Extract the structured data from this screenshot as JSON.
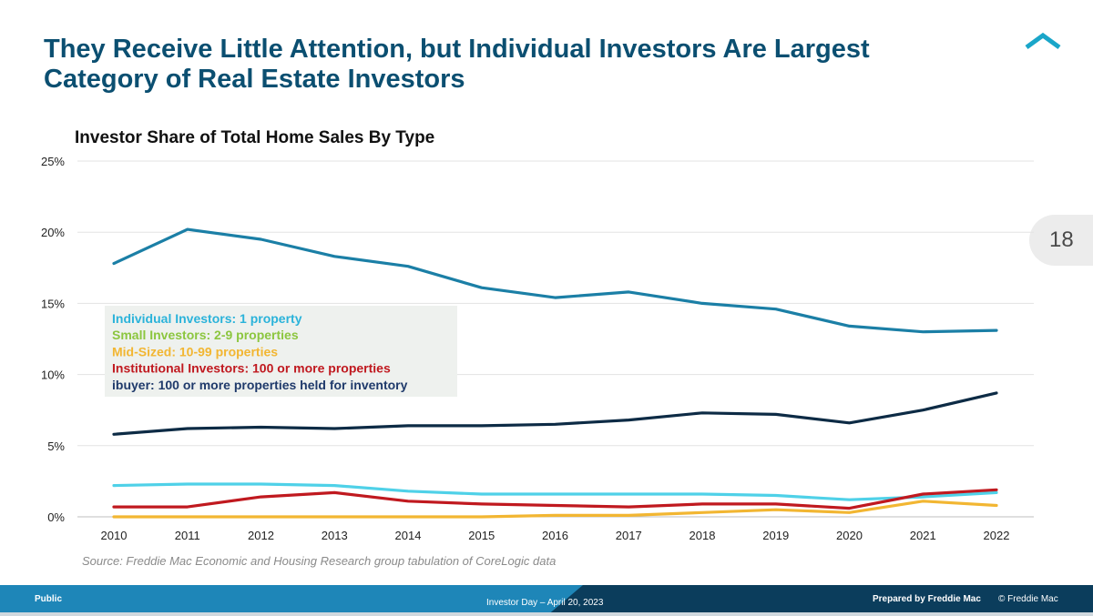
{
  "slide": {
    "title": "They Receive Little Attention, but Individual Investors Are Largest Category of Real Estate Investors",
    "page_number": "18",
    "source": "Source: Freddie Mac Economic and Housing Research group tabulation of CoreLogic data",
    "logo_icon": "roof-chevron-icon"
  },
  "footer": {
    "classification": "Public",
    "event": "Investor Day – April 20, 2023",
    "prepared_by": "Prepared by Freddie Mac",
    "copyright": "© Freddie Mac"
  },
  "colors": {
    "title": "#0b4f71",
    "footer_dark": "#0b3d5c",
    "footer_light": "#1e86b8",
    "accent_teal": "#1aa6c9"
  },
  "chart_data": {
    "type": "line",
    "title": "Investor Share of Total Home Sales By Type",
    "x": [
      "2010",
      "2011",
      "2012",
      "2013",
      "2014",
      "2015",
      "2016",
      "2017",
      "2018",
      "2019",
      "2020",
      "2021",
      "2022"
    ],
    "ylim": [
      0,
      25
    ],
    "yticks": [
      0,
      5,
      10,
      15,
      20,
      25
    ],
    "ytick_labels": [
      "0%",
      "5%",
      "10%",
      "15%",
      "20%",
      "25%"
    ],
    "grid": true,
    "legend": {
      "placement": "center-left box",
      "entries": [
        {
          "label": "Individual Investors: 1 property",
          "color": "#2bb3da"
        },
        {
          "label": "Small Investors: 2-9 properties",
          "color": "#8cc63f"
        },
        {
          "label": "Mid-Sized: 10-99 properties",
          "color": "#f2b632"
        },
        {
          "label": "Institutional Investors: 100 or more properties",
          "color": "#c0191f"
        },
        {
          "label": "ibuyer: 100 or more properties held for inventory",
          "color": "#1f3a6b"
        }
      ]
    },
    "series": [
      {
        "color": "#1b7fa6",
        "values": [
          17.8,
          20.2,
          19.5,
          18.3,
          17.6,
          16.1,
          15.4,
          15.8,
          15.0,
          14.6,
          13.4,
          13.0,
          13.1
        ]
      },
      {
        "color": "#0d2b45",
        "values": [
          5.8,
          6.2,
          6.3,
          6.2,
          6.4,
          6.4,
          6.5,
          6.8,
          7.3,
          7.2,
          6.6,
          7.5,
          8.7
        ]
      },
      {
        "color": "#4fd1e8",
        "values": [
          2.2,
          2.3,
          2.3,
          2.2,
          1.8,
          1.6,
          1.6,
          1.6,
          1.6,
          1.5,
          1.2,
          1.4,
          1.7
        ]
      },
      {
        "color": "#c0191f",
        "values": [
          0.7,
          0.7,
          1.4,
          1.7,
          1.1,
          0.9,
          0.8,
          0.7,
          0.9,
          0.9,
          0.6,
          1.6,
          1.9
        ]
      },
      {
        "color": "#f2b632",
        "values": [
          0.0,
          0.0,
          0.0,
          0.0,
          0.0,
          0.0,
          0.1,
          0.1,
          0.3,
          0.5,
          0.3,
          1.1,
          0.8
        ]
      }
    ]
  }
}
